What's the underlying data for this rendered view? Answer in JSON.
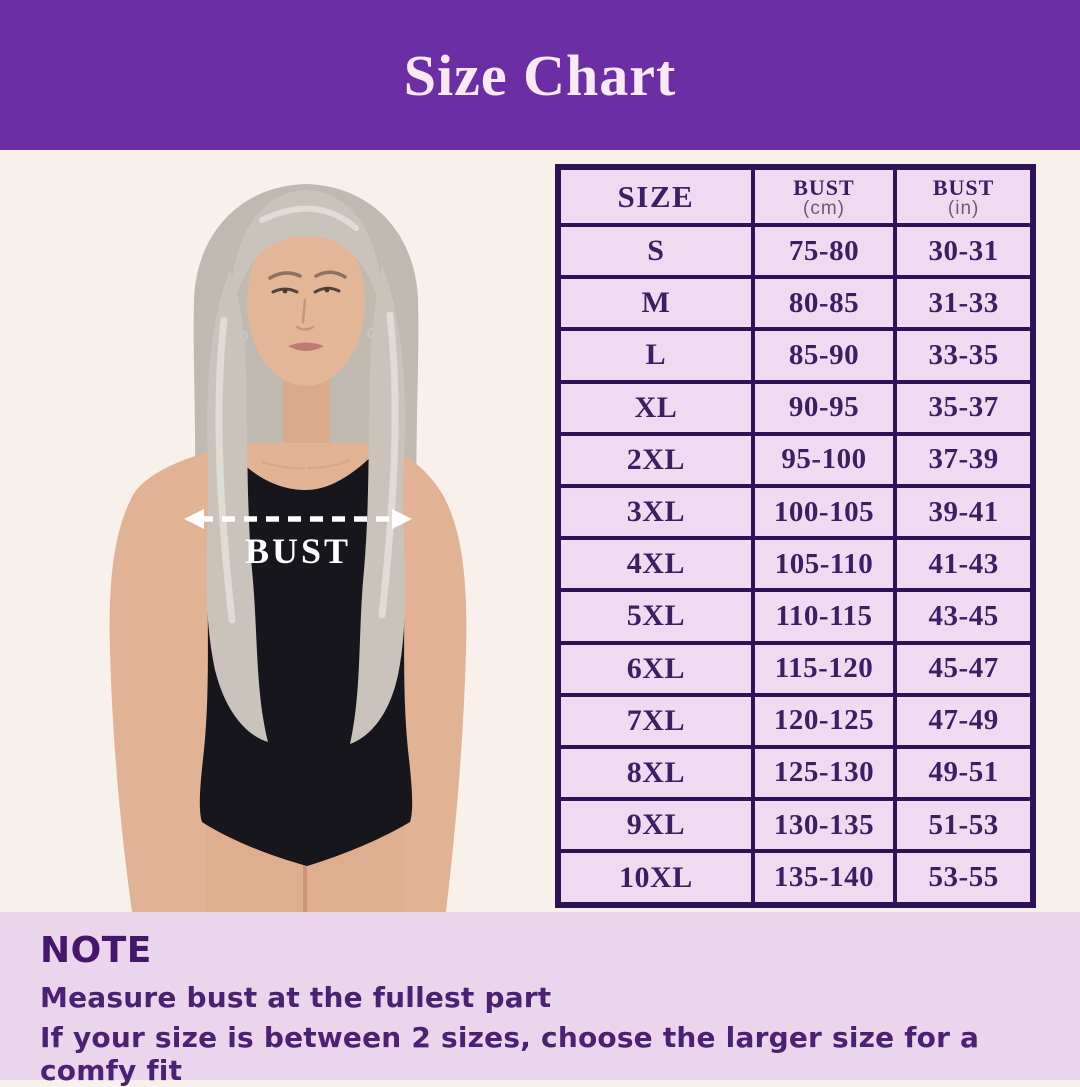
{
  "header": {
    "title": "Size Chart"
  },
  "figure": {
    "measure_label": "BUST"
  },
  "table": {
    "columns": [
      {
        "label": "SIZE",
        "unit": ""
      },
      {
        "label": "BUST",
        "unit": "(cm)"
      },
      {
        "label": "BUST",
        "unit": "(in)"
      }
    ],
    "rows": [
      [
        "S",
        "75-80",
        "30-31"
      ],
      [
        "M",
        "80-85",
        "31-33"
      ],
      [
        "L",
        "85-90",
        "33-35"
      ],
      [
        "XL",
        "90-95",
        "35-37"
      ],
      [
        "2XL",
        "95-100",
        "37-39"
      ],
      [
        "3XL",
        "100-105",
        "39-41"
      ],
      [
        "4XL",
        "105-110",
        "41-43"
      ],
      [
        "5XL",
        "110-115",
        "43-45"
      ],
      [
        "6XL",
        "115-120",
        "45-47"
      ],
      [
        "7XL",
        "120-125",
        "47-49"
      ],
      [
        "8XL",
        "125-130",
        "49-51"
      ],
      [
        "9XL",
        "130-135",
        "51-53"
      ],
      [
        "10XL",
        "135-140",
        "53-55"
      ]
    ]
  },
  "note": {
    "heading": "NOTE",
    "lines": [
      "Measure bust at the fullest part",
      "If your size is between 2 sizes, choose the larger size for a comfy fit"
    ]
  },
  "colors": {
    "banner_purple": "#6C2EA4",
    "banner_text": "#F8E9F2",
    "page_background": "#F8F0EB",
    "table_cell_background": "#F0DAF1",
    "table_border": "#2F1155",
    "table_text": "#3D1E63",
    "unit_text": "#6B5B76",
    "note_background": "#EBD5EC",
    "note_text": "#4B2173",
    "measure_arrow": "#FFFFFF"
  },
  "chart_data": {
    "type": "table",
    "title": "Size Chart",
    "columns": [
      "SIZE",
      "BUST (cm)",
      "BUST (in)"
    ],
    "rows": [
      [
        "S",
        "75-80",
        "30-31"
      ],
      [
        "M",
        "80-85",
        "31-33"
      ],
      [
        "L",
        "85-90",
        "33-35"
      ],
      [
        "XL",
        "90-95",
        "35-37"
      ],
      [
        "2XL",
        "95-100",
        "37-39"
      ],
      [
        "3XL",
        "100-105",
        "39-41"
      ],
      [
        "4XL",
        "105-110",
        "41-43"
      ],
      [
        "5XL",
        "110-115",
        "43-45"
      ],
      [
        "6XL",
        "115-120",
        "45-47"
      ],
      [
        "7XL",
        "120-125",
        "47-49"
      ],
      [
        "8XL",
        "125-130",
        "49-51"
      ],
      [
        "9XL",
        "130-135",
        "51-53"
      ],
      [
        "10XL",
        "135-140",
        "53-55"
      ]
    ]
  }
}
